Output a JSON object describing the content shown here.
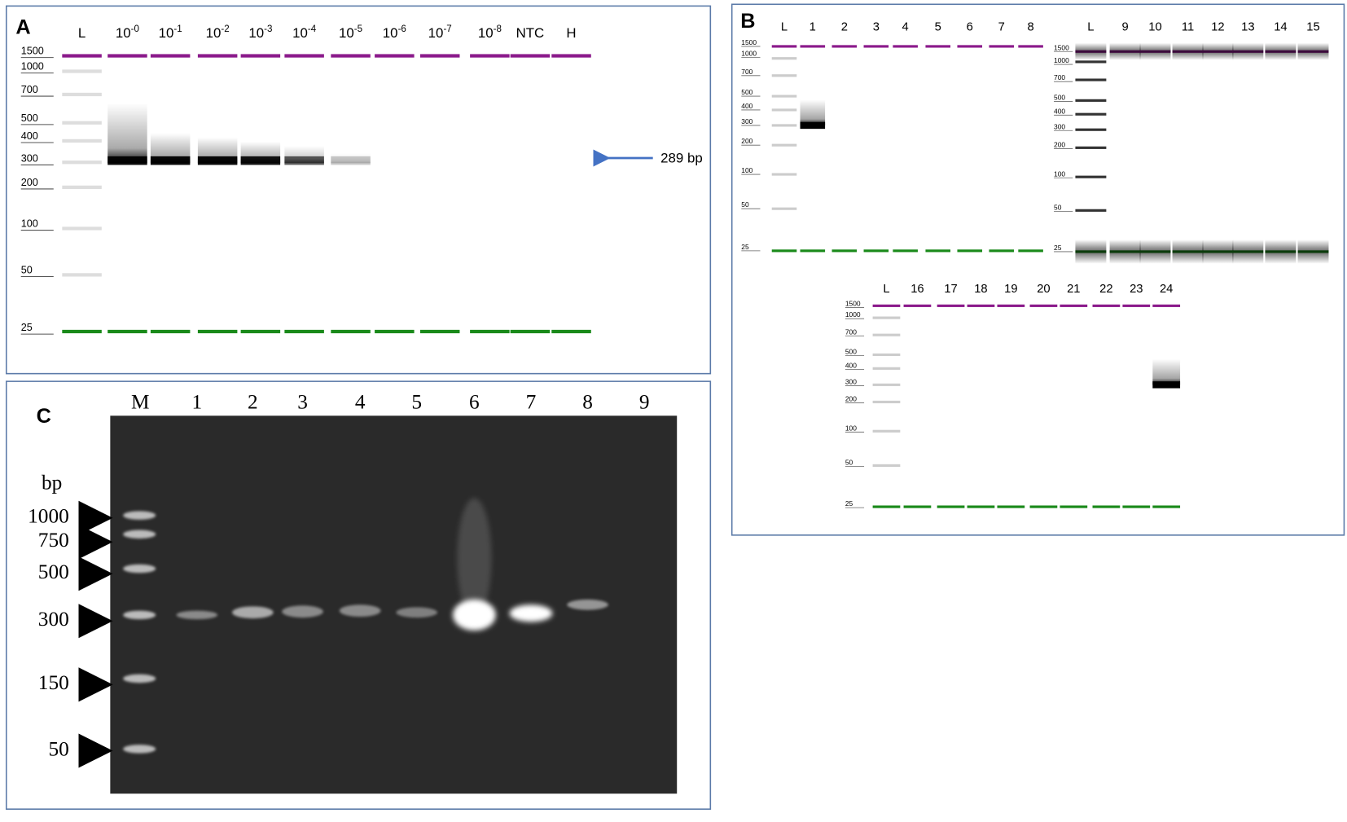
{
  "panel_a": {
    "label": "A",
    "lanes": [
      {
        "text": "L"
      },
      {
        "text": "10",
        "sup": "-0"
      },
      {
        "text": "10",
        "sup": "-1"
      },
      {
        "text": "10",
        "sup": "-2"
      },
      {
        "text": "10",
        "sup": "-3"
      },
      {
        "text": "10",
        "sup": "-4"
      },
      {
        "text": "10",
        "sup": "-5"
      },
      {
        "text": "10",
        "sup": "-6"
      },
      {
        "text": "10",
        "sup": "-7"
      },
      {
        "text": "10",
        "sup": "-8"
      },
      {
        "text": "NTC"
      },
      {
        "text": "H"
      }
    ],
    "ladder": [
      1500,
      1000,
      700,
      500,
      400,
      300,
      200,
      100,
      50,
      25
    ],
    "annotation": "289 bp"
  },
  "panel_b": {
    "label": "B",
    "gels": [
      {
        "lanes": [
          "L",
          "1",
          "2",
          "3",
          "4",
          "5",
          "6",
          "7",
          "8"
        ],
        "ladder": [
          1500,
          1000,
          700,
          500,
          400,
          300,
          200,
          100,
          50,
          25
        ]
      },
      {
        "lanes": [
          "L",
          "9",
          "10",
          "11",
          "12",
          "13",
          "14",
          "15"
        ],
        "ladder": [
          1500,
          1000,
          700,
          500,
          400,
          300,
          200,
          100,
          50,
          25
        ]
      },
      {
        "lanes": [
          "L",
          "16",
          "17",
          "18",
          "19",
          "20",
          "21",
          "22",
          "23",
          "24"
        ],
        "ladder": [
          1500,
          1000,
          700,
          500,
          400,
          300,
          200,
          100,
          50,
          25
        ]
      }
    ]
  },
  "panel_c": {
    "label": "C",
    "lanes": [
      "M",
      "1",
      "2",
      "3",
      "4",
      "5",
      "6",
      "7",
      "8",
      "9"
    ],
    "unit": "bp",
    "markers": [
      1000,
      750,
      500,
      300,
      150,
      50
    ]
  }
}
